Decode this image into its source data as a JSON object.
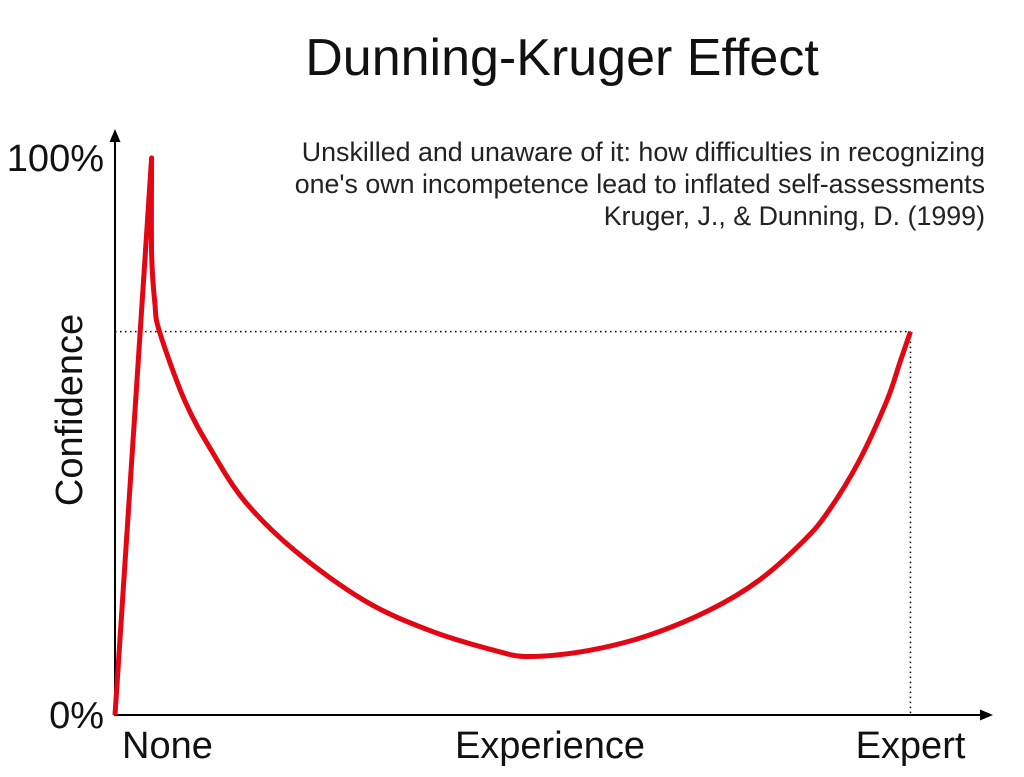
{
  "chart_data": {
    "type": "line",
    "title": "Dunning-Kruger Effect",
    "subtitle": [
      "Unskilled and unaware of it: how difficulties in recognizing",
      "one's own incompetence lead to inflated self-assessments",
      "Kruger, J., & Dunning, D. (1999)"
    ],
    "xlabel": "Experience",
    "ylabel": "Confidence",
    "xticks": [
      0,
      1
    ],
    "xtick_labels": [
      "None",
      "Expert"
    ],
    "yticks": [
      0,
      100
    ],
    "ytick_labels": [
      "0%",
      "100%"
    ],
    "xlim": [
      0,
      1.1
    ],
    "ylim": [
      0,
      105
    ],
    "grid": false,
    "line_color": "#e30613",
    "x": [
      0,
      0.046,
      0.046,
      0.05,
      0.056,
      0.088,
      0.122,
      0.163,
      0.226,
      0.314,
      0.395,
      0.477,
      0.521,
      0.596,
      0.671,
      0.747,
      0.809,
      0.866,
      0.897,
      0.935,
      0.97,
      0.987,
      1.0
    ],
    "y": [
      0,
      100,
      83,
      74.1,
      68.8,
      56.3,
      47.3,
      38.4,
      29.5,
      20.5,
      15.2,
      11.6,
      10.5,
      11.6,
      14.3,
      18.8,
      24.1,
      31.3,
      36.6,
      45.5,
      56.3,
      63.4,
      68.8
    ]
  }
}
